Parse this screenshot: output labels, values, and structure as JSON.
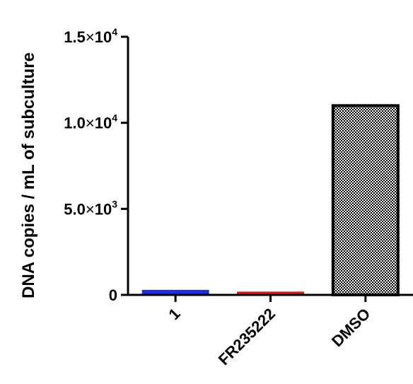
{
  "chart_data": {
    "type": "bar",
    "title": "",
    "xlabel": "",
    "ylabel": "DNA copies / mL of subculture",
    "ylim": [
      0,
      15000
    ],
    "yticks": [
      {
        "value": 0,
        "mantissa": "0",
        "times": "",
        "base": "",
        "exp": ""
      },
      {
        "value": 5000,
        "mantissa": "5.0",
        "times": "×",
        "base": "10",
        "exp": "3"
      },
      {
        "value": 10000,
        "mantissa": "1.0",
        "times": "×",
        "base": "10",
        "exp": "4"
      },
      {
        "value": 15000,
        "mantissa": "1.5",
        "times": "×",
        "base": "10",
        "exp": "4"
      }
    ],
    "categories": [
      "1",
      "FR235222",
      "DMSO"
    ],
    "values": [
      230,
      130,
      11000
    ],
    "colors": [
      "#1f2fd6",
      "#d61f1f",
      "#000000"
    ],
    "fills": [
      "solid",
      "solid",
      "checker"
    ],
    "grid": false,
    "legend": "none"
  }
}
